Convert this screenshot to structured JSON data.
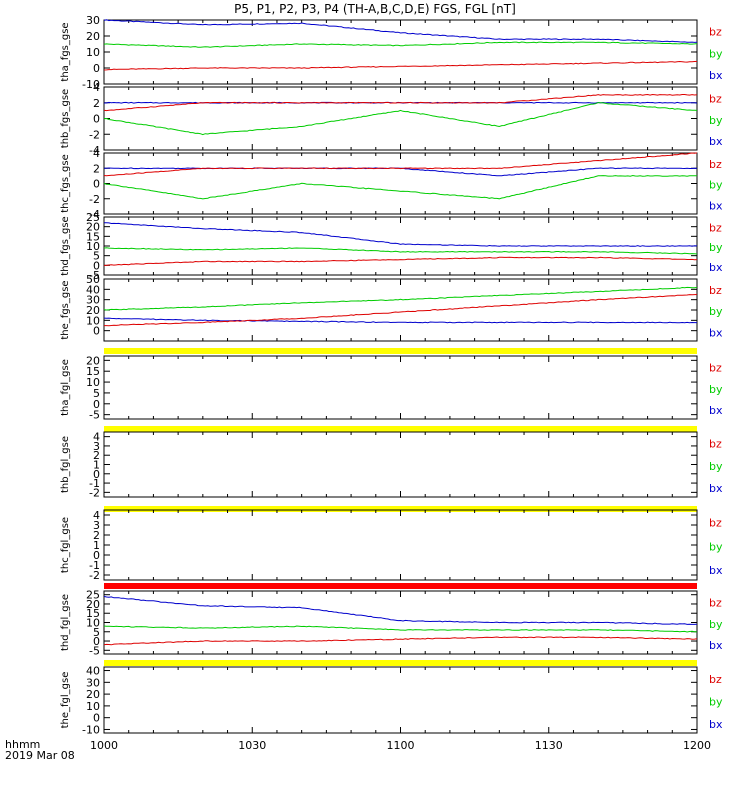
{
  "title": "P5, P1, P2, P3, P4 (TH-A,B,C,D,E) FGS, FGL [nT]",
  "x_axis": {
    "label_line1": "hhmm",
    "label_line2": "2019 Mar 08",
    "ticks": [
      "1000",
      "1030",
      "1100",
      "1130",
      "1200"
    ],
    "range_minutes": [
      600,
      720
    ]
  },
  "colors": {
    "bz": "#dd0000",
    "by": "#00cc00",
    "bx": "#0000cc",
    "flag_yellow": "#ffff00",
    "flag_red": "#ff0000"
  },
  "chart_data": [
    {
      "type": "line",
      "ylabel": "tha_fgs_gse",
      "ylim": [
        -10,
        30
      ],
      "yticks": [
        "30",
        "20",
        "10",
        "0",
        "-10"
      ],
      "legend": [
        "bz",
        "by",
        "bx"
      ],
      "series": [
        {
          "name": "bx",
          "x": [
            600,
            620,
            640,
            660,
            680,
            700,
            720
          ],
          "values": [
            30,
            27,
            28,
            22,
            18,
            18,
            16
          ]
        },
        {
          "name": "by",
          "x": [
            600,
            620,
            640,
            660,
            680,
            700,
            720
          ],
          "values": [
            15,
            13,
            15,
            14,
            16,
            16,
            15
          ]
        },
        {
          "name": "bz",
          "x": [
            600,
            620,
            640,
            660,
            680,
            700,
            720
          ],
          "values": [
            -1,
            0,
            0,
            1,
            2,
            3,
            4
          ]
        }
      ]
    },
    {
      "type": "line",
      "ylabel": "thb_fgs_gse",
      "ylim": [
        -4,
        4
      ],
      "yticks": [
        "4",
        "2",
        "0",
        "-2",
        "-4"
      ],
      "legend": [
        "bz",
        "by",
        "bx"
      ],
      "series": [
        {
          "name": "bx",
          "x": [
            600,
            620,
            640,
            660,
            680,
            700,
            720
          ],
          "values": [
            2,
            2,
            2,
            2,
            2,
            2,
            2
          ]
        },
        {
          "name": "by",
          "x": [
            600,
            620,
            640,
            660,
            680,
            700,
            720
          ],
          "values": [
            0,
            -2,
            -1,
            1,
            -1,
            2,
            1
          ]
        },
        {
          "name": "bz",
          "x": [
            600,
            620,
            640,
            660,
            680,
            700,
            720
          ],
          "values": [
            1,
            2,
            2,
            2,
            2,
            3,
            3
          ]
        }
      ]
    },
    {
      "type": "line",
      "ylabel": "thc_fgs_gse",
      "ylim": [
        -4,
        4
      ],
      "yticks": [
        "4",
        "2",
        "0",
        "-2",
        "-4"
      ],
      "legend": [
        "bz",
        "by",
        "bx"
      ],
      "series": [
        {
          "name": "bx",
          "x": [
            600,
            620,
            640,
            660,
            680,
            700,
            720
          ],
          "values": [
            2,
            2,
            2,
            2,
            1,
            2,
            2
          ]
        },
        {
          "name": "by",
          "x": [
            600,
            620,
            640,
            660,
            680,
            700,
            720
          ],
          "values": [
            0,
            -2,
            0,
            -1,
            -2,
            1,
            1
          ]
        },
        {
          "name": "bz",
          "x": [
            600,
            620,
            640,
            660,
            680,
            700,
            720
          ],
          "values": [
            1,
            2,
            2,
            2,
            2,
            3,
            4
          ]
        }
      ]
    },
    {
      "type": "line",
      "ylabel": "thd_fgs_gse",
      "ylim": [
        -5,
        25
      ],
      "yticks": [
        "25",
        "20",
        "15",
        "10",
        "5",
        "0",
        "-5"
      ],
      "legend": [
        "bz",
        "by",
        "bx"
      ],
      "series": [
        {
          "name": "bx",
          "x": [
            600,
            620,
            640,
            660,
            680,
            700,
            720
          ],
          "values": [
            22,
            19,
            17,
            11,
            10,
            10,
            10
          ]
        },
        {
          "name": "by",
          "x": [
            600,
            620,
            640,
            660,
            680,
            700,
            720
          ],
          "values": [
            9,
            8,
            9,
            7,
            7,
            7,
            6
          ]
        },
        {
          "name": "bz",
          "x": [
            600,
            620,
            640,
            660,
            680,
            700,
            720
          ],
          "values": [
            0,
            2,
            2,
            3,
            4,
            4,
            3
          ]
        }
      ]
    },
    {
      "type": "line",
      "ylabel": "the_fgs_gse",
      "ylim": [
        -10,
        50
      ],
      "yticks": [
        "50",
        "40",
        "30",
        "20",
        "10",
        "0"
      ],
      "legend": [
        "bz",
        "by",
        "bx"
      ],
      "series": [
        {
          "name": "bx",
          "x": [
            600,
            620,
            640,
            660,
            680,
            700,
            720
          ],
          "values": [
            12,
            10,
            9,
            8,
            8,
            8,
            8
          ]
        },
        {
          "name": "by",
          "x": [
            600,
            620,
            640,
            660,
            680,
            700,
            720
          ],
          "values": [
            20,
            23,
            27,
            30,
            34,
            38,
            42
          ]
        },
        {
          "name": "bz",
          "x": [
            600,
            620,
            640,
            660,
            680,
            700,
            720
          ],
          "values": [
            5,
            8,
            12,
            18,
            24,
            30,
            35
          ]
        }
      ]
    },
    {
      "type": "line",
      "ylabel": "tha_fgl_gse",
      "ylim": [
        -7,
        22
      ],
      "yticks": [
        "20",
        "15",
        "10",
        "5",
        "0",
        "-5"
      ],
      "legend": [
        "bz",
        "by",
        "bx"
      ],
      "flag_color": "yellow",
      "series": []
    },
    {
      "type": "line",
      "ylabel": "thb_fgl_gse",
      "ylim": [
        -2.5,
        4.5
      ],
      "yticks": [
        "4",
        "3",
        "2",
        "1",
        "0",
        "-1",
        "-2"
      ],
      "legend": [
        "bz",
        "by",
        "bx"
      ],
      "flag_color": "yellow",
      "series": []
    },
    {
      "type": "line",
      "ylabel": "thc_fgl_gse",
      "ylim": [
        -2.5,
        4.5
      ],
      "yticks": [
        "4",
        "3",
        "2",
        "1",
        "0",
        "-1",
        "-2"
      ],
      "legend": [
        "bz",
        "by",
        "bx"
      ],
      "flag_color": "yellow",
      "series": []
    },
    {
      "type": "line",
      "ylabel": "thd_fgl_gse",
      "ylim": [
        -7,
        27
      ],
      "yticks": [
        "25",
        "20",
        "15",
        "10",
        "5",
        "0",
        "-5"
      ],
      "legend": [
        "bz",
        "by",
        "bx"
      ],
      "flag_color": "red",
      "series": [
        {
          "name": "bx",
          "x": [
            600,
            620,
            640,
            660,
            680,
            700,
            720
          ],
          "values": [
            24,
            19,
            18,
            11,
            10,
            10,
            9
          ]
        },
        {
          "name": "by",
          "x": [
            600,
            620,
            640,
            660,
            680,
            700,
            720
          ],
          "values": [
            8,
            7,
            8,
            6,
            6,
            6,
            5
          ]
        },
        {
          "name": "bz",
          "x": [
            600,
            620,
            640,
            660,
            680,
            700,
            720
          ],
          "values": [
            -2,
            0,
            0,
            1,
            2,
            2,
            1
          ]
        }
      ]
    },
    {
      "type": "line",
      "ylabel": "the_fgl_gse",
      "ylim": [
        -13,
        43
      ],
      "yticks": [
        "40",
        "30",
        "20",
        "10",
        "0",
        "-10"
      ],
      "legend": [
        "bz",
        "by",
        "bx"
      ],
      "flag_color": "yellow",
      "series": []
    }
  ]
}
